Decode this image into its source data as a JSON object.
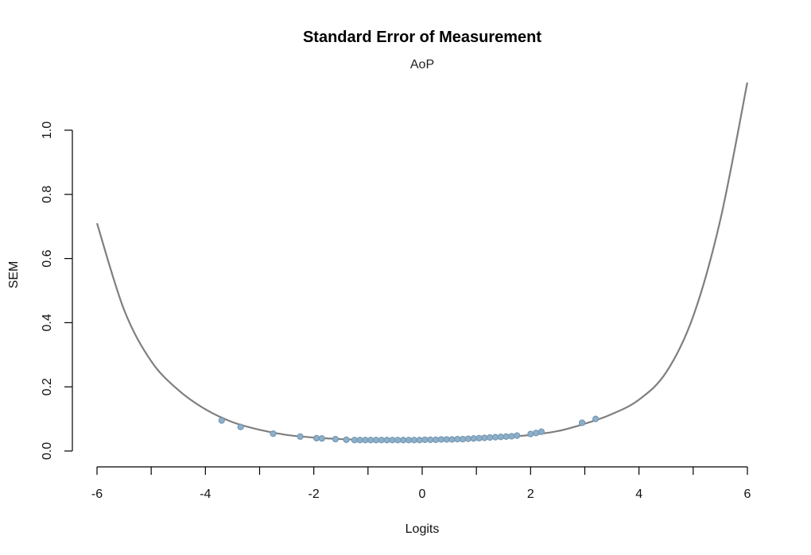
{
  "chart_data": {
    "type": "line",
    "title": "Standard Error of Measurement",
    "subtitle": "AoP",
    "xlabel": "Logits",
    "ylabel": "SEM",
    "xlim": [
      -6,
      6
    ],
    "ylim": [
      0,
      1.0
    ],
    "x_ticks": [
      -6,
      -4,
      -2,
      0,
      2,
      4,
      6
    ],
    "y_ticks": [
      0.0,
      0.2,
      0.4,
      0.6,
      0.8,
      1.0
    ],
    "x_tick_labels": [
      "-6",
      "-4",
      "-2",
      "0",
      "2",
      "4",
      "6"
    ],
    "y_tick_labels": [
      "0.0",
      "0.2",
      "0.4",
      "0.6",
      "0.8",
      "1.0"
    ],
    "grid": false,
    "colors": {
      "curve": "#7f7f7f",
      "points": "#8eafc8"
    },
    "curve": {
      "x": [
        -6.0,
        -5.5,
        -5.0,
        -4.5,
        -4.0,
        -3.5,
        -3.0,
        -2.5,
        -2.0,
        -1.5,
        -1.0,
        -0.5,
        0.0,
        0.5,
        1.0,
        1.5,
        2.0,
        2.5,
        3.0,
        3.5,
        4.0,
        4.5,
        5.0,
        5.5,
        6.0
      ],
      "y": [
        0.71,
        0.44,
        0.28,
        0.19,
        0.13,
        0.09,
        0.066,
        0.05,
        0.042,
        0.037,
        0.035,
        0.034,
        0.035,
        0.036,
        0.039,
        0.043,
        0.05,
        0.062,
        0.085,
        0.115,
        0.16,
        0.245,
        0.42,
        0.72,
        1.15
      ]
    },
    "points": {
      "x": [
        -3.7,
        -3.35,
        -2.75,
        -2.25,
        -1.95,
        -1.85,
        -1.6,
        -1.4,
        -1.25,
        -1.15,
        -1.05,
        -0.95,
        -0.85,
        -0.75,
        -0.65,
        -0.55,
        -0.45,
        -0.35,
        -0.25,
        -0.15,
        -0.05,
        0.05,
        0.15,
        0.25,
        0.35,
        0.45,
        0.55,
        0.65,
        0.75,
        0.85,
        0.95,
        1.05,
        1.15,
        1.25,
        1.35,
        1.45,
        1.55,
        1.65,
        1.75,
        2.0,
        2.1,
        2.2,
        2.95,
        3.2
      ],
      "y": [
        0.095,
        0.075,
        0.054,
        0.045,
        0.04,
        0.039,
        0.037,
        0.035,
        0.034,
        0.034,
        0.034,
        0.034,
        0.034,
        0.034,
        0.034,
        0.034,
        0.034,
        0.034,
        0.034,
        0.034,
        0.034,
        0.035,
        0.035,
        0.035,
        0.036,
        0.036,
        0.036,
        0.037,
        0.037,
        0.038,
        0.039,
        0.04,
        0.041,
        0.042,
        0.043,
        0.044,
        0.045,
        0.046,
        0.048,
        0.053,
        0.056,
        0.06,
        0.088,
        0.1
      ]
    }
  }
}
